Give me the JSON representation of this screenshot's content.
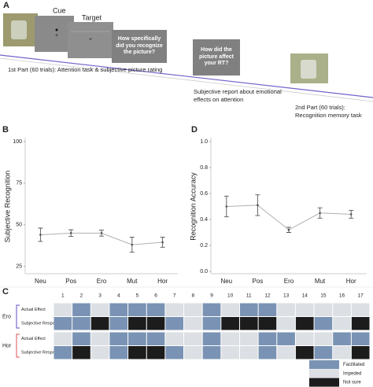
{
  "panel_a": {
    "label": "A",
    "cue": "Cue",
    "target": "Target",
    "question_1": "How specifically did you recognize the picture?",
    "part_1": "1st Part (60 trials): Attention task & subjective picture rating",
    "question_2": "How did the picture affect your RT?",
    "report": "Subjective report about emotional effects on attention",
    "part_2": "2nd Part (60 trials): Recognition memory task"
  },
  "chart_data": [
    {
      "panel": "B",
      "type": "line",
      "ylabel": "Subjective Recognition",
      "categories": [
        "Neu",
        "Pos",
        "Ero",
        "Mut",
        "Hor"
      ],
      "values": [
        44,
        45,
        45,
        38,
        39.5
      ],
      "errors": [
        4,
        2,
        1.8,
        4.5,
        3
      ],
      "color": "#b0b0b0",
      "error_color": "#555555",
      "ylim": [
        22,
        100
      ],
      "yticks": [
        25,
        50,
        75,
        100
      ]
    },
    {
      "panel": "D",
      "type": "line",
      "ylabel": "Recognition Accuracy",
      "categories": [
        "Neu",
        "Pos",
        "Ero",
        "Mut",
        "Hor"
      ],
      "values": [
        0.5,
        0.51,
        0.32,
        0.45,
        0.44
      ],
      "errors": [
        0.08,
        0.08,
        0.02,
        0.04,
        0.03
      ],
      "color": "#b0b0b0",
      "error_color": "#555555",
      "ylim": [
        0,
        1
      ],
      "yticks": [
        {
          "value": 0,
          "label": "0.0"
        },
        0.2,
        0.4,
        0.6,
        0.8,
        {
          "value": 1,
          "label": "1.0"
        }
      ]
    }
  ],
  "panel_c": {
    "label": "C",
    "columns": [
      "1",
      "2",
      "3",
      "4",
      "5",
      "6",
      "7",
      "8",
      "9",
      "10",
      "11",
      "12",
      "13",
      "14",
      "15",
      "16",
      "17"
    ],
    "groups": [
      {
        "name": "Ero",
        "color": "#5b4fc4",
        "rows": [
          {
            "name": "Actual Effect",
            "values": [
              1,
              0,
              1,
              0,
              0,
              0,
              1,
              1,
              0,
              1,
              0,
              0,
              1,
              1,
              1,
              1,
              1
            ]
          },
          {
            "name": "Subjective Response",
            "values": [
              0,
              0,
              2,
              0,
              2,
              2,
              0,
              1,
              0,
              2,
              2,
              2,
              1,
              2,
              0,
              1,
              2
            ]
          }
        ]
      },
      {
        "name": "Hor",
        "color": "#d9534f",
        "rows": [
          {
            "name": "Actual Effect",
            "values": [
              1,
              0,
              1,
              0,
              0,
              0,
              1,
              1,
              0,
              1,
              1,
              0,
              0,
              1,
              1,
              0,
              0
            ]
          },
          {
            "name": "Subjective Response",
            "values": [
              0,
              2,
              1,
              0,
              2,
              2,
              0,
              1,
              0,
              1,
              1,
              0,
              1,
              2,
              0,
              1,
              2
            ]
          }
        ]
      }
    ],
    "legend": [
      {
        "name": "Facilitated",
        "color": "#7a93b4"
      },
      {
        "name": "Impeded",
        "color": "#dcdfe3"
      },
      {
        "name": "Not sure",
        "color": "#1c1c1c"
      }
    ]
  }
}
